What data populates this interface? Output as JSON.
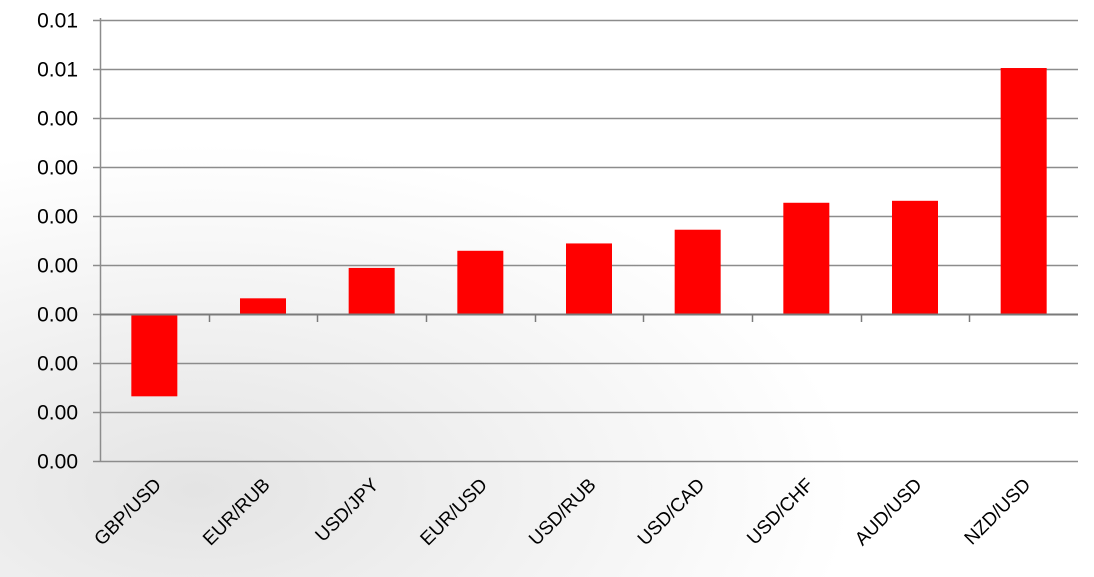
{
  "chart_data": {
    "type": "bar",
    "title": "",
    "xlabel": "",
    "ylabel": "",
    "categories": [
      "GBP/USD",
      "EUR/RUB",
      "USD/JPY",
      "EUR/USD",
      "USD/RUB",
      "USD/CAD",
      "USD/CHF",
      "AUD/USD",
      "NZD/USD"
    ],
    "values": [
      -0.00168,
      0.00032,
      0.00094,
      0.00129,
      0.00144,
      0.00172,
      0.00227,
      0.00231,
      0.00502
    ],
    "ylim": [
      -0.003,
      0.006
    ],
    "yticks": [
      -0.003,
      -0.002,
      -0.001,
      0.0,
      0.001,
      0.002,
      0.003,
      0.004,
      0.005,
      0.006
    ],
    "ytick_labels": [
      "0.00",
      "0.00",
      "0.00",
      "0.00",
      "0.00",
      "0.00",
      "0.00",
      "0.00",
      "0.01",
      "0.01"
    ],
    "bar_color": "#ff0000",
    "grid": true,
    "legend": "none"
  }
}
